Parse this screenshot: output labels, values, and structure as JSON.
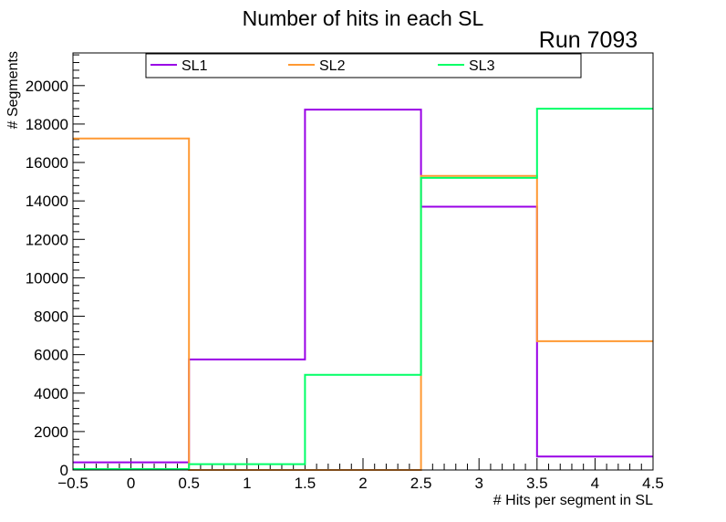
{
  "chart_data": {
    "type": "histogram",
    "title": "Number of hits in each SL",
    "annotation": "Run 7093",
    "xlabel": "# Hits per segment in SL",
    "ylabel": "# Segments",
    "xlim": [
      -0.5,
      4.5
    ],
    "ylim": [
      0,
      21700
    ],
    "bin_edges": [
      -0.5,
      0.5,
      1.5,
      2.5,
      3.5,
      4.5
    ],
    "x_major_ticks": [
      -0.5,
      0,
      0.5,
      1,
      1.5,
      2,
      2.5,
      3,
      3.5,
      4,
      4.5
    ],
    "x_tick_labels": [
      "−0.5",
      "0",
      "0.5",
      "1",
      "1.5",
      "2",
      "2.5",
      "3",
      "3.5",
      "4",
      "4.5"
    ],
    "y_major_ticks": [
      0,
      2000,
      4000,
      6000,
      8000,
      10000,
      12000,
      14000,
      16000,
      18000,
      20000
    ],
    "y_tick_labels": [
      "0",
      "2000",
      "4000",
      "6000",
      "8000",
      "10000",
      "12000",
      "14000",
      "16000",
      "18000",
      "20000"
    ],
    "legend_position": "top",
    "series": [
      {
        "name": "SL1",
        "color": "#9900e6",
        "values": [
          400,
          5750,
          18750,
          13700,
          700
        ]
      },
      {
        "name": "SL2",
        "color": "#ff9933",
        "values": [
          17250,
          0,
          0,
          15300,
          6700
        ]
      },
      {
        "name": "SL3",
        "color": "#00ff66",
        "values": [
          50,
          300,
          4950,
          15200,
          18800
        ]
      }
    ]
  }
}
